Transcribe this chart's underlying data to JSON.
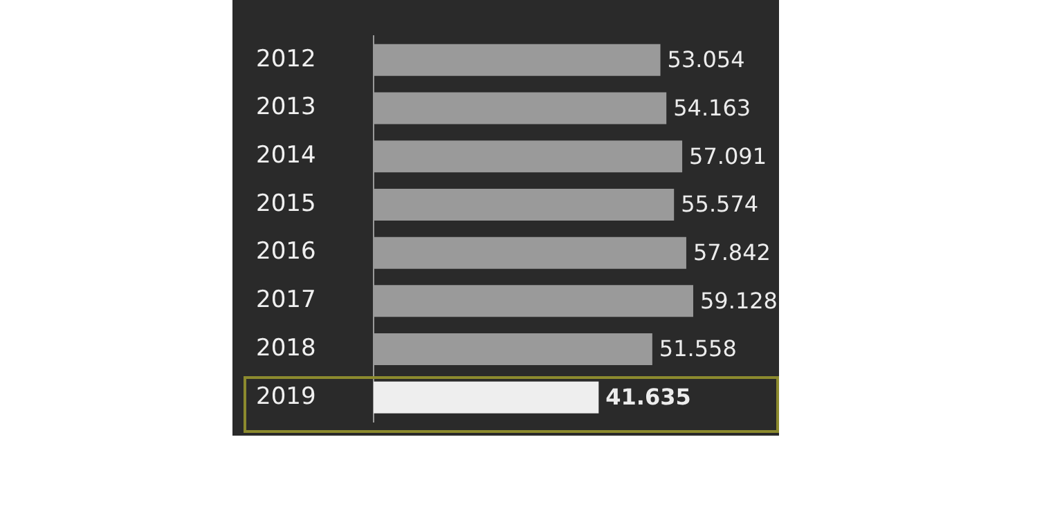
{
  "chart_data": {
    "type": "bar",
    "orientation": "horizontal",
    "categories": [
      "2012",
      "2013",
      "2014",
      "2015",
      "2016",
      "2017",
      "2018",
      "2019"
    ],
    "values": [
      53054,
      54163,
      57091,
      55574,
      57842,
      59128,
      51558,
      41635
    ],
    "value_labels": [
      "53.054",
      "54.163",
      "57.091",
      "55.574",
      "57.842",
      "59.128",
      "51.558",
      "41.635"
    ],
    "colors": [
      "#9a9a9a",
      "#9a9a9a",
      "#9a9a9a",
      "#9a9a9a",
      "#9a9a9a",
      "#9a9a9a",
      "#9a9a9a",
      "#eeeeee"
    ],
    "xlim": [
      0,
      75000
    ],
    "tick_labels": "y",
    "legend": false
  }
}
